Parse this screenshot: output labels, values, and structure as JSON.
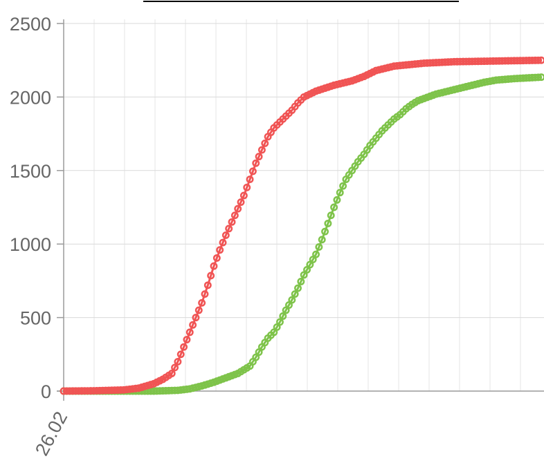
{
  "chart_data": {
    "type": "line",
    "title": "",
    "xlabel": "",
    "ylabel": "",
    "ylim": [
      0,
      2500
    ],
    "yticks": [
      0,
      500,
      1000,
      1500,
      2000,
      2500
    ],
    "xtick_labels": [
      "26.02"
    ],
    "num_points": 160,
    "grid": true,
    "legend": "none",
    "series": [
      {
        "color": "#f05454",
        "anchors": [
          [
            0,
            0
          ],
          [
            10,
            2
          ],
          [
            20,
            8
          ],
          [
            25,
            20
          ],
          [
            30,
            50
          ],
          [
            33,
            80
          ],
          [
            36,
            120
          ],
          [
            38,
            200
          ],
          [
            40,
            300
          ],
          [
            42,
            400
          ],
          [
            44,
            500
          ],
          [
            46,
            600
          ],
          [
            48,
            720
          ],
          [
            50,
            850
          ],
          [
            52,
            960
          ],
          [
            54,
            1060
          ],
          [
            56,
            1150
          ],
          [
            58,
            1240
          ],
          [
            60,
            1330
          ],
          [
            62,
            1440
          ],
          [
            64,
            1550
          ],
          [
            66,
            1640
          ],
          [
            68,
            1730
          ],
          [
            70,
            1790
          ],
          [
            72,
            1830
          ],
          [
            74,
            1870
          ],
          [
            76,
            1910
          ],
          [
            78,
            1960
          ],
          [
            80,
            2000
          ],
          [
            84,
            2040
          ],
          [
            90,
            2080
          ],
          [
            96,
            2110
          ],
          [
            100,
            2140
          ],
          [
            104,
            2180
          ],
          [
            110,
            2210
          ],
          [
            120,
            2230
          ],
          [
            130,
            2240
          ],
          [
            159,
            2250
          ]
        ]
      },
      {
        "color": "#7ec34a",
        "anchors": [
          [
            0,
            0
          ],
          [
            30,
            0
          ],
          [
            38,
            5
          ],
          [
            42,
            15
          ],
          [
            46,
            35
          ],
          [
            50,
            60
          ],
          [
            54,
            90
          ],
          [
            58,
            120
          ],
          [
            62,
            170
          ],
          [
            64,
            230
          ],
          [
            66,
            300
          ],
          [
            68,
            360
          ],
          [
            70,
            400
          ],
          [
            72,
            470
          ],
          [
            74,
            550
          ],
          [
            76,
            620
          ],
          [
            78,
            700
          ],
          [
            80,
            790
          ],
          [
            82,
            860
          ],
          [
            84,
            930
          ],
          [
            86,
            1030
          ],
          [
            88,
            1140
          ],
          [
            90,
            1250
          ],
          [
            92,
            1350
          ],
          [
            94,
            1440
          ],
          [
            96,
            1500
          ],
          [
            98,
            1560
          ],
          [
            100,
            1610
          ],
          [
            102,
            1670
          ],
          [
            104,
            1720
          ],
          [
            106,
            1770
          ],
          [
            108,
            1810
          ],
          [
            110,
            1850
          ],
          [
            112,
            1880
          ],
          [
            114,
            1920
          ],
          [
            116,
            1950
          ],
          [
            118,
            1975
          ],
          [
            120,
            1990
          ],
          [
            124,
            2020
          ],
          [
            128,
            2040
          ],
          [
            132,
            2060
          ],
          [
            136,
            2080
          ],
          [
            140,
            2100
          ],
          [
            144,
            2115
          ],
          [
            150,
            2125
          ],
          [
            159,
            2135
          ]
        ]
      }
    ]
  }
}
